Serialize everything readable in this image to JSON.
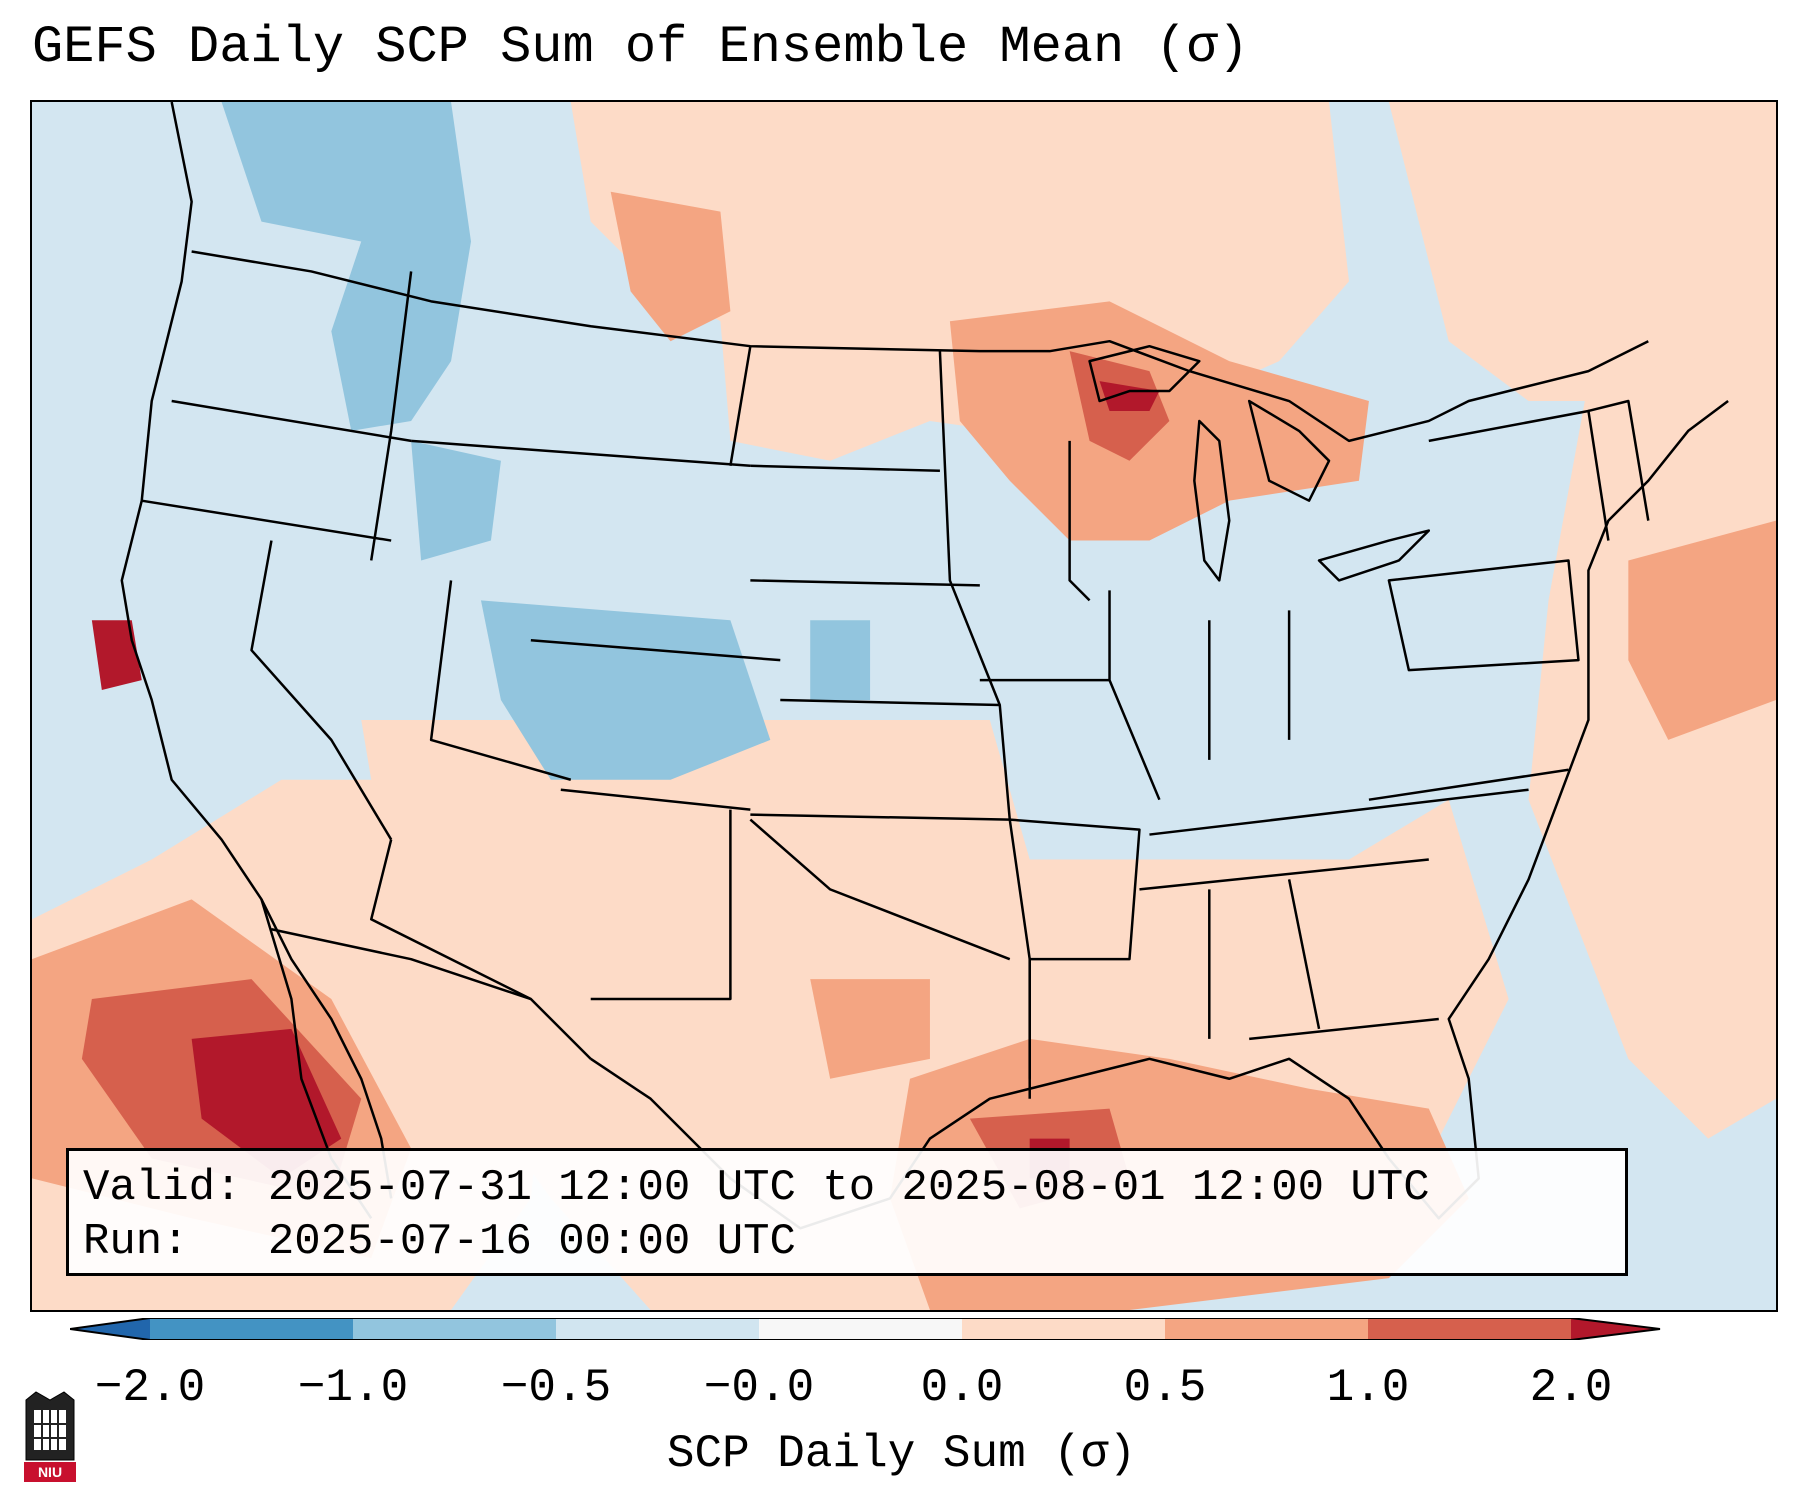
{
  "title": "GEFS Daily SCP Sum of Ensemble Mean (σ)",
  "info": {
    "valid_line": "Valid: 2025-07-31 12:00 UTC to 2025-08-01 12:00 UTC",
    "run_line": "Run:   2025-07-16 00:00 UTC"
  },
  "colorbar": {
    "label": "SCP Daily Sum (σ)",
    "ticks": [
      "−2.0",
      "−1.0",
      "−0.5",
      "−0.0",
      "0.0",
      "0.5",
      "1.0",
      "2.0"
    ],
    "colors": [
      "#4393c3",
      "#92c5de",
      "#d1e5f0",
      "#f7f7f7",
      "#fddbc7",
      "#f4a582",
      "#d6604d",
      "#b2182b"
    ],
    "under_color": "#2166ac",
    "over_color": "#b2182b"
  },
  "map": {
    "projection": "Lambert Conformal",
    "region": "CONUS",
    "field": "SCP daily sum standardized anomaly (σ)"
  },
  "logo": {
    "text": "NIU"
  }
}
